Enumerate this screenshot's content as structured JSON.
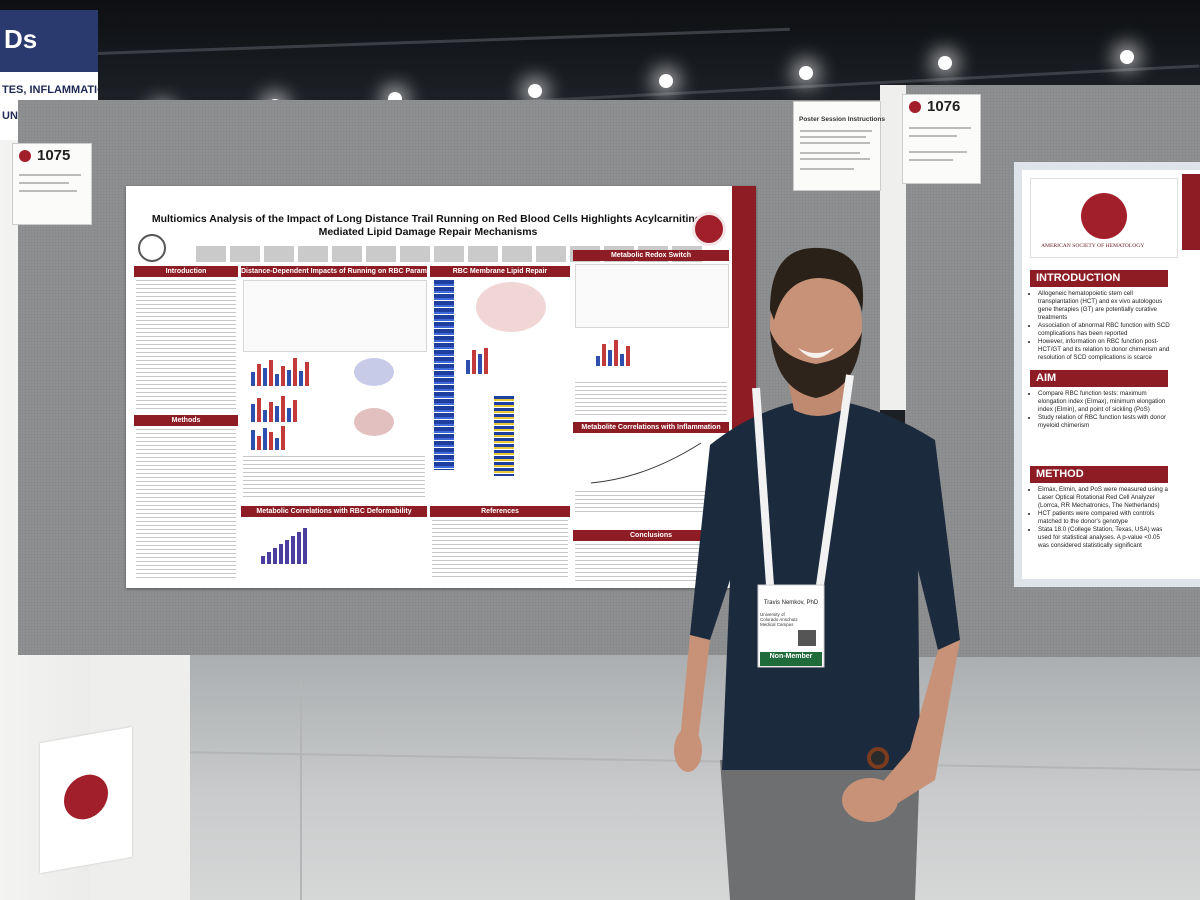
{
  "scene": {
    "banner": {
      "big_text": "Ds",
      "lines": [
        "TES, INFLAMMATION,",
        "UNOLOGY"
      ]
    },
    "poster_numbers": {
      "left": "1075",
      "right": "1076"
    },
    "instructions_card": {
      "title": "Poster Session Instructions"
    },
    "main_poster": {
      "title": "Multiomics Analysis of the Impact of Long Distance Trail Running on Red Blood Cells Highlights Acylcarnitine-Mediated Lipid Damage Repair Mechanisms",
      "sections": {
        "introduction": "Introduction",
        "distance": "Distance-Dependent Impacts of Running on RBC Parameters",
        "lipid": "RBC Membrane Lipid Repair",
        "redox": "Metabolic Redox Switch",
        "methods": "Methods",
        "inflammation": "Metabolite Correlations with Inflammation",
        "deformability": "Metabolic Correlations with RBC Deformability",
        "references": "References",
        "conclusions": "Conclusions"
      }
    },
    "right_poster": {
      "org": "AMERICAN SOCIETY OF HEMATOLOGY",
      "intro_head": "INTRODUCTION",
      "intro_items": [
        "Allogeneic hematopoietic stem cell transplantation (HCT) and ex vivo autologous gene therapies (GT) are potentially curative treatments",
        "Association of abnormal RBC function with SCD complications has been reported",
        "However, information on RBC function post-HCT/GT and its relation to donor chimerism and resolution of SCD complications is scarce"
      ],
      "aim_head": "AIM",
      "aim_items": [
        "Compare RBC function tests: maximum elongation index (EImax), minimum elongation index (EImin), and point of sickling (PoS)",
        "Study relation of RBC function tests with donor myeloid chimerism"
      ],
      "method_head": "METHOD",
      "method_items": [
        "EImax, EImin, and PoS were measured using a Laser Optical Rotational Red Cell Analyzer (Lorrca, RR Mechatronics, The Netherlands)",
        "HCT patients were compared with controls matched to the donor's genotype",
        "Stata 18.0 (College Station, Texas, USA) was used for statistical analyses. A p-value <0.05 was considered statistically significant"
      ]
    },
    "badge": {
      "name": "Travis Nemkov, PhD",
      "affiliation": "University of Colorado Anschutz Medical Campus",
      "type": "Non-Member"
    }
  },
  "colors": {
    "ash_red": "#8d1c25",
    "shirt": "#1c2a3e",
    "board": "#8e9092"
  }
}
